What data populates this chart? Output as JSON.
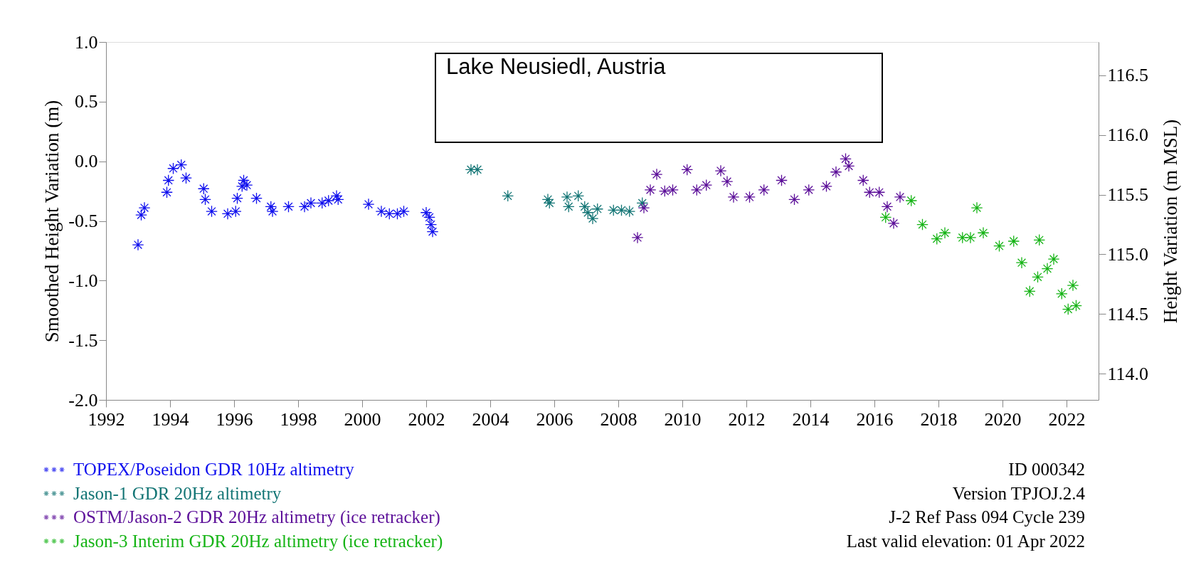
{
  "chart_data": {
    "type": "scatter",
    "title": "Lake Neusiedl, Austria",
    "ylabel": "Smoothed Height Variation (m)",
    "y2label": "Height Variation (m MSL)",
    "xlim": [
      1992,
      2023
    ],
    "xticks": [
      1992,
      1994,
      1996,
      1998,
      2000,
      2002,
      2004,
      2006,
      2008,
      2010,
      2012,
      2014,
      2016,
      2018,
      2020,
      2022
    ],
    "ylim": [
      -2.0,
      1.0
    ],
    "yticks": [
      {
        "value": -2.0,
        "label": "-2.0"
      },
      {
        "value": -1.5,
        "label": "-1.5"
      },
      {
        "value": -1.0,
        "label": "-1.0"
      },
      {
        "value": -0.5,
        "label": "-0.5"
      },
      {
        "value": 0.0,
        "label": "0.0"
      },
      {
        "value": 0.5,
        "label": "0.5"
      },
      {
        "value": 1.0,
        "label": "1.0"
      }
    ],
    "y2lim": [
      113.78,
      116.78
    ],
    "y2ticks": [
      {
        "value": 114.0,
        "label": "114.0"
      },
      {
        "value": 114.5,
        "label": "114.5"
      },
      {
        "value": 115.0,
        "label": "115.0"
      },
      {
        "value": 115.5,
        "label": "115.5"
      },
      {
        "value": 116.0,
        "label": "116.0"
      },
      {
        "value": 116.5,
        "label": "116.5"
      }
    ],
    "marker": "cross",
    "grid": false,
    "legend": "bottom left",
    "series": [
      {
        "name": "TOPEX/Poseidon GDR 10Hz altimetry",
        "color": "#1010ee",
        "x": [
          1993.0,
          1993.1,
          1993.2,
          1993.9,
          1993.95,
          1994.1,
          1994.35,
          1994.5,
          1995.05,
          1995.1,
          1995.3,
          1995.8,
          1996.05,
          1996.1,
          1996.25,
          1996.3,
          1996.4,
          1996.7,
          1997.15,
          1997.2,
          1997.7,
          1998.2,
          1998.4,
          1998.75,
          1998.95,
          1999.2,
          1999.25,
          2000.2,
          2000.6,
          2000.85,
          2001.1,
          2001.3,
          2002.0,
          2002.1,
          2002.15,
          2002.2
        ],
        "values": [
          -0.7,
          -0.45,
          -0.39,
          -0.26,
          -0.16,
          -0.06,
          -0.03,
          -0.14,
          -0.23,
          -0.32,
          -0.42,
          -0.44,
          -0.42,
          -0.31,
          -0.21,
          -0.16,
          -0.2,
          -0.31,
          -0.38,
          -0.42,
          -0.38,
          -0.38,
          -0.35,
          -0.35,
          -0.33,
          -0.29,
          -0.32,
          -0.36,
          -0.42,
          -0.44,
          -0.44,
          -0.42,
          -0.43,
          -0.47,
          -0.53,
          -0.59
        ]
      },
      {
        "name": "Jason-1 GDR 20Hz altimetry",
        "color": "#137575",
        "x": [
          2003.4,
          2003.6,
          2004.55,
          2005.8,
          2005.85,
          2006.4,
          2006.45,
          2006.75,
          2006.95,
          2007.05,
          2007.2,
          2007.35,
          2007.85,
          2008.1,
          2008.35,
          2008.75
        ],
        "values": [
          -0.07,
          -0.07,
          -0.29,
          -0.32,
          -0.35,
          -0.3,
          -0.38,
          -0.29,
          -0.38,
          -0.43,
          -0.48,
          -0.4,
          -0.41,
          -0.41,
          -0.42,
          -0.35
        ]
      },
      {
        "name": "OSTM/Jason-2 GDR 20Hz altimetry (ice retracker)",
        "color": "#5c0f99",
        "x": [
          2008.6,
          2008.8,
          2009.0,
          2009.2,
          2009.45,
          2009.7,
          2010.15,
          2010.45,
          2010.75,
          2011.2,
          2011.4,
          2011.6,
          2012.1,
          2012.55,
          2013.1,
          2013.5,
          2013.95,
          2014.5,
          2014.8,
          2015.1,
          2015.2,
          2015.65,
          2015.85,
          2016.15,
          2016.4,
          2016.6,
          2016.8
        ],
        "values": [
          -0.64,
          -0.39,
          -0.24,
          -0.11,
          -0.25,
          -0.24,
          -0.07,
          -0.24,
          -0.2,
          -0.08,
          -0.17,
          -0.3,
          -0.3,
          -0.24,
          -0.16,
          -0.32,
          -0.24,
          -0.21,
          -0.09,
          0.02,
          -0.04,
          -0.16,
          -0.26,
          -0.26,
          -0.38,
          -0.52,
          -0.3
        ]
      },
      {
        "name": "Jason-3 Interim GDR 20Hz altimetry (ice retracker)",
        "color": "#16b416",
        "x": [
          2016.35,
          2017.15,
          2017.5,
          2017.95,
          2018.2,
          2018.75,
          2019.0,
          2019.2,
          2019.4,
          2019.9,
          2020.35,
          2020.6,
          2020.85,
          2021.1,
          2021.15,
          2021.4,
          2021.6,
          2021.85,
          2022.05,
          2022.2,
          2022.3
        ],
        "values": [
          -0.47,
          -0.33,
          -0.53,
          -0.65,
          -0.6,
          -0.64,
          -0.64,
          -0.39,
          -0.6,
          -0.71,
          -0.67,
          -0.85,
          -1.09,
          -0.97,
          -0.66,
          -0.9,
          -0.82,
          -1.11,
          -1.24,
          -1.04,
          -1.21
        ]
      }
    ],
    "annotations": [
      "ID 000342",
      "Version TPJOJ.2.4",
      "J-2 Ref Pass 094 Cycle 239",
      "Last valid elevation: 01 Apr 2022"
    ]
  }
}
